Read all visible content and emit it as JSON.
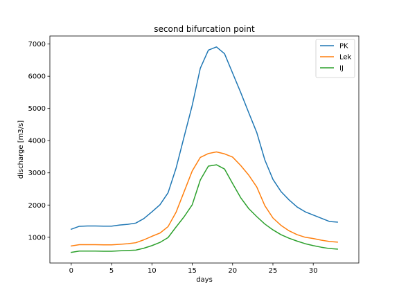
{
  "chart_data": {
    "type": "line",
    "title": "second bifurcation point",
    "xlabel": "days",
    "ylabel": "discharge [m3/s]",
    "xlim": [
      -2.65,
      35.65
    ],
    "ylim": [
      200,
      7250
    ],
    "xticks": [
      0,
      5,
      10,
      15,
      20,
      25,
      30
    ],
    "yticks": [
      1000,
      2000,
      3000,
      4000,
      5000,
      6000,
      7000
    ],
    "legend_position": "top-right",
    "x": [
      0,
      1,
      2,
      3,
      4,
      5,
      6,
      7,
      8,
      9,
      10,
      11,
      12,
      13,
      14,
      15,
      16,
      17,
      18,
      19,
      20,
      21,
      22,
      23,
      24,
      25,
      26,
      27,
      28,
      29,
      30,
      31,
      32,
      33
    ],
    "series": [
      {
        "name": "PK",
        "color": "#1f77b4",
        "values": [
          1250,
          1340,
          1350,
          1350,
          1345,
          1345,
          1380,
          1400,
          1440,
          1580,
          1790,
          2010,
          2380,
          3150,
          4130,
          5100,
          6250,
          6810,
          6910,
          6700,
          6100,
          5500,
          4870,
          4250,
          3400,
          2800,
          2420,
          2160,
          1940,
          1790,
          1690,
          1590,
          1490,
          1470
        ]
      },
      {
        "name": "Lek",
        "color": "#ff7f0e",
        "values": [
          730,
          770,
          770,
          770,
          765,
          765,
          780,
          800,
          830,
          920,
          1030,
          1130,
          1330,
          1780,
          2420,
          3060,
          3480,
          3600,
          3650,
          3590,
          3490,
          3230,
          2930,
          2560,
          1980,
          1600,
          1370,
          1200,
          1080,
          1000,
          960,
          910,
          870,
          850
        ]
      },
      {
        "name": "IJ",
        "color": "#2ca02c",
        "values": [
          530,
          570,
          570,
          570,
          565,
          565,
          580,
          590,
          600,
          660,
          740,
          840,
          990,
          1320,
          1640,
          2010,
          2780,
          3210,
          3250,
          3120,
          2670,
          2230,
          1890,
          1640,
          1410,
          1230,
          1080,
          970,
          880,
          800,
          740,
          690,
          650,
          630
        ]
      }
    ]
  }
}
